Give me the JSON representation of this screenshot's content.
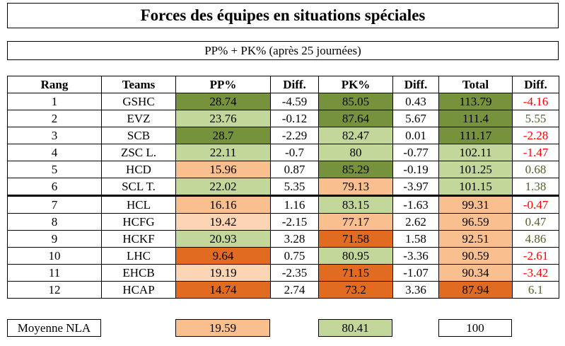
{
  "title": "Forces des équipes en situations spéciales",
  "subtitle": "PP% + PK% (après 25 journées)",
  "colors": {
    "D": "#76923c",
    "L": "#c4d79b",
    "P": "#fabf8f",
    "LP": "#fcd5b4",
    "O": "#e26b22",
    "W": "#ffffff",
    "negative_text": "#ff0000",
    "positive_text": "#4f6228"
  },
  "headers": [
    "Rang",
    "Teams",
    "PP%",
    "Diff.",
    "PK%",
    "Diff.",
    "Total",
    "Diff."
  ],
  "rows": [
    {
      "rang": "1",
      "team": "GSHC",
      "pp": "28.74",
      "pp_c": "D",
      "d1": "-4.59",
      "pk": "85.05",
      "pk_c": "D",
      "d2": "0.43",
      "total": "113.79",
      "t_c": "D",
      "d3": "-4.16"
    },
    {
      "rang": "2",
      "team": "EVZ",
      "pp": "23.76",
      "pp_c": "L",
      "d1": "-0.12",
      "pk": "87.64",
      "pk_c": "D",
      "d2": "5.67",
      "total": "111.4",
      "t_c": "D",
      "d3": "5.55"
    },
    {
      "rang": "3",
      "team": "SCB",
      "pp": "28.7",
      "pp_c": "D",
      "d1": "-2.29",
      "pk": "82.47",
      "pk_c": "L",
      "d2": "0.01",
      "total": "111.17",
      "t_c": "D",
      "d3": "-2.28"
    },
    {
      "rang": "4",
      "team": "ZSC L.",
      "pp": "22.11",
      "pp_c": "L",
      "d1": "-0.7",
      "pk": "80",
      "pk_c": "L",
      "d2": "-0.77",
      "total": "102.11",
      "t_c": "L",
      "d3": "-1.47"
    },
    {
      "rang": "5",
      "team": "HCD",
      "pp": "15.96",
      "pp_c": "P",
      "d1": "0.87",
      "pk": "85.29",
      "pk_c": "D",
      "d2": "-0.19",
      "total": "101.25",
      "t_c": "L",
      "d3": "0.68"
    },
    {
      "rang": "6",
      "team": "SCL T.",
      "pp": "22.02",
      "pp_c": "L",
      "d1": "5.35",
      "pk": "79.13",
      "pk_c": "P",
      "d2": "-3.97",
      "total": "101.15",
      "t_c": "L",
      "d3": "1.38"
    },
    {
      "rang": "7",
      "team": "HCL",
      "pp": "16.16",
      "pp_c": "P",
      "d1": "1.16",
      "pk": "83.15",
      "pk_c": "L",
      "d2": "-1.63",
      "total": "99.31",
      "t_c": "P",
      "d3": "-0.47"
    },
    {
      "rang": "8",
      "team": "HCFG",
      "pp": "19.42",
      "pp_c": "LP",
      "d1": "-2.15",
      "pk": "77.17",
      "pk_c": "P",
      "d2": "2.62",
      "total": "96.59",
      "t_c": "P",
      "d3": "0.47"
    },
    {
      "rang": "9",
      "team": "HCKF",
      "pp": "20.93",
      "pp_c": "L",
      "d1": "3.28",
      "pk": "71.58",
      "pk_c": "O",
      "d2": "1.58",
      "total": "92.51",
      "t_c": "P",
      "d3": "4.86"
    },
    {
      "rang": "10",
      "team": "LHC",
      "pp": "9.64",
      "pp_c": "O",
      "d1": "0.75",
      "pk": "80.95",
      "pk_c": "L",
      "d2": "-3.36",
      "total": "90.59",
      "t_c": "P",
      "d3": "-2.61"
    },
    {
      "rang": "11",
      "team": "EHCB",
      "pp": "19.19",
      "pp_c": "LP",
      "d1": "-2.35",
      "pk": "71.15",
      "pk_c": "O",
      "d2": "-1.07",
      "total": "90.34",
      "t_c": "P",
      "d3": "-3.42"
    },
    {
      "rang": "12",
      "team": "HCAP",
      "pp": "14.74",
      "pp_c": "O",
      "d1": "2.74",
      "pk": "73.2",
      "pk_c": "O",
      "d2": "3.36",
      "total": "87.94",
      "t_c": "O",
      "d3": "6.1"
    }
  ],
  "footer": {
    "label": "Moyenne NLA",
    "pp": "19.59",
    "pp_c": "P",
    "pk": "80.41",
    "pk_c": "L",
    "total": "100",
    "t_c": "W"
  }
}
